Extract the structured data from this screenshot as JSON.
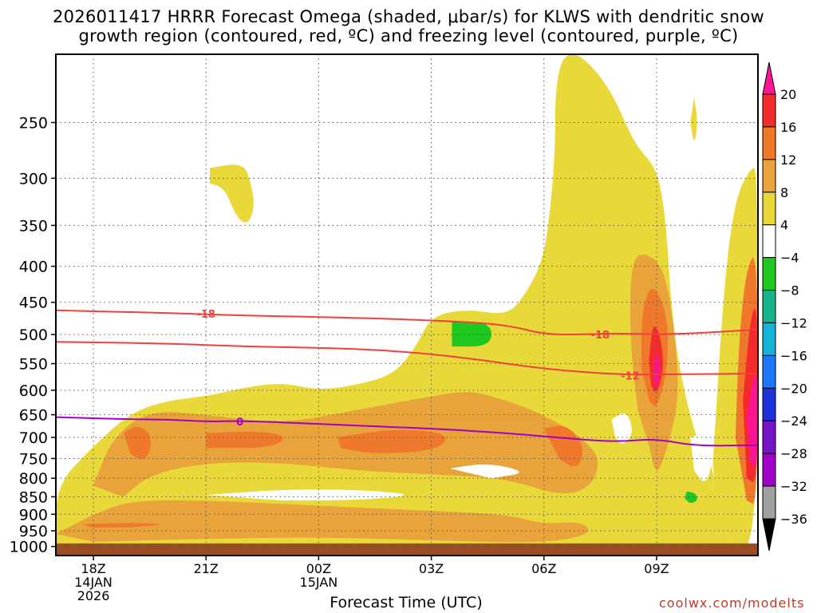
{
  "title": {
    "line1": "2026011417 HRRR Forecast Omega (shaded, μbar/s) for KLWS with dendritic snow",
    "line2": "growth region (contoured, red, ºC) and freezing level (contoured, purple, ºC)"
  },
  "credit": "coolwx.com/modelts",
  "chart_data": {
    "type": "time-height cross section (shaded contour)",
    "title": "2026011417 HRRR Forecast Omega (shaded, μbar/s) for KLWS with dendritic snow growth region (contoured, red, ºC) and freezing level (contoured, purple, ºC)",
    "xlabel": "Forecast Time (UTC)",
    "ylabel": "",
    "x_ticks": [
      {
        "label": "18Z",
        "sub1": "14JAN",
        "sub2": "2026",
        "hour": 0
      },
      {
        "label": "21Z",
        "sub1": "",
        "sub2": "",
        "hour": 3
      },
      {
        "label": "00Z",
        "sub1": "15JAN",
        "sub2": "",
        "hour": 6
      },
      {
        "label": "03Z",
        "sub1": "",
        "sub2": "",
        "hour": 9
      },
      {
        "label": "06Z",
        "sub1": "",
        "sub2": "",
        "hour": 12
      },
      {
        "label": "09Z",
        "sub1": "",
        "sub2": "",
        "hour": 15
      }
    ],
    "xlim_hours": [
      -1,
      17.7
    ],
    "y_ticks": [
      250,
      300,
      350,
      400,
      450,
      500,
      550,
      600,
      650,
      700,
      750,
      800,
      850,
      900,
      950,
      1000
    ],
    "ylim_hPa": [
      200,
      1030
    ],
    "y_scale": "log",
    "grid": "dotted, at x and y ticks",
    "colorbar": {
      "labels": [
        "20",
        "16",
        "12",
        "8",
        "4",
        "−4",
        "−8",
        "−12",
        "−16",
        "−20",
        "−24",
        "−28",
        "−32",
        "−36"
      ],
      "colors": [
        "#ff1493",
        "#f52a2a",
        "#f0782a",
        "#e8a43a",
        "#e8d83a",
        "#ffffff",
        "#1ec81e",
        "#14b48c",
        "#14b4d8",
        "#1e78ff",
        "#1e32dc",
        "#7814c8",
        "#a000c8",
        "#a0a0a0",
        "#000000"
      ],
      "top_arrow": "#ff1493",
      "bottom_arrow": "#000000"
    },
    "omega_levels": {
      "yellow": 4,
      "light_orange": 8,
      "orange": 12,
      "red": 16,
      "magenta": 20,
      "green": -4
    },
    "contours": [
      {
        "name": "dendritic growth top",
        "label": "-18",
        "color": "#f04040",
        "points": [
          [
            -1,
            462
          ],
          [
            2,
            466
          ],
          [
            4,
            470
          ],
          [
            6,
            472
          ],
          [
            9,
            477
          ],
          [
            11,
            484
          ],
          [
            12,
            500
          ],
          [
            13,
            500
          ],
          [
            14,
            498
          ],
          [
            15,
            500
          ],
          [
            16,
            498
          ],
          [
            17.7,
            492
          ]
        ],
        "label_positions": [
          [
            3,
            467
          ],
          [
            13.5,
            500
          ]
        ]
      },
      {
        "name": "dendritic growth bottom",
        "label": "-12",
        "color": "#f04040",
        "points": [
          [
            -1,
            512
          ],
          [
            2,
            515
          ],
          [
            4,
            520
          ],
          [
            6,
            522
          ],
          [
            8,
            527
          ],
          [
            10,
            540
          ],
          [
            12,
            560
          ],
          [
            14,
            570
          ],
          [
            15,
            570
          ],
          [
            17.7,
            568
          ]
        ],
        "label_positions": [
          [
            14.3,
            572
          ]
        ]
      },
      {
        "name": "freezing level",
        "label": "0",
        "color": "#a000c8",
        "points": [
          [
            -1,
            655
          ],
          [
            1,
            660
          ],
          [
            2,
            660
          ],
          [
            3,
            665
          ],
          [
            4,
            663
          ],
          [
            6,
            670
          ],
          [
            9,
            680
          ],
          [
            11,
            690
          ],
          [
            13,
            705
          ],
          [
            14,
            710
          ],
          [
            15,
            703
          ],
          [
            16,
            720
          ],
          [
            17.7,
            718
          ]
        ],
        "label_positions": [
          [
            3.9,
            664
          ]
        ]
      }
    ]
  }
}
